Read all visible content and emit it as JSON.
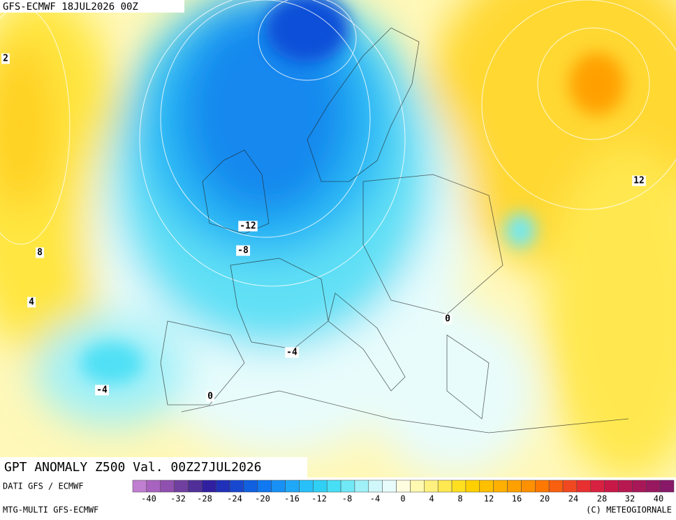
{
  "header": {
    "title": "GFS-ECMWF 18JUL2026 00Z"
  },
  "map": {
    "contour_labels": [
      "2",
      "8",
      "4",
      "-4",
      "0",
      "-12",
      "-8",
      "-4",
      "0",
      "12"
    ]
  },
  "footer": {
    "product": "GPT ANOMALY Z500 Val. 00Z27JUL2026",
    "source": "DATI GFS / ECMWF",
    "model": "MTG-MULTI GFS-ECMWF",
    "credit": "(C) METEOGIORNALE"
  },
  "legend": {
    "labels": [
      "-40",
      "-32",
      "-28",
      "-24",
      "-20",
      "-16",
      "-12",
      "-8",
      "-4",
      "0",
      "4",
      "8",
      "12",
      "16",
      "20",
      "24",
      "28",
      "32",
      "40"
    ],
    "colors": [
      "#c07fd0",
      "#a862c0",
      "#9050b0",
      "#7040a0",
      "#503098",
      "#3020a0",
      "#2030b8",
      "#1848d0",
      "#1060e0",
      "#1078f0",
      "#1890f5",
      "#20a8f8",
      "#28c0f8",
      "#30d0f5",
      "#48def5",
      "#70e8f5",
      "#a0f0f8",
      "#d0f8fa",
      "#e8fcfc",
      "#fffde0",
      "#fff8b0",
      "#fff080",
      "#ffe850",
      "#ffe020",
      "#ffd000",
      "#ffc000",
      "#ffb000",
      "#ffa000",
      "#ff9000",
      "#ff7800",
      "#f86010",
      "#f04820",
      "#e83030",
      "#d82040",
      "#c81848",
      "#b81850",
      "#a81858",
      "#981860",
      "#881868"
    ]
  }
}
